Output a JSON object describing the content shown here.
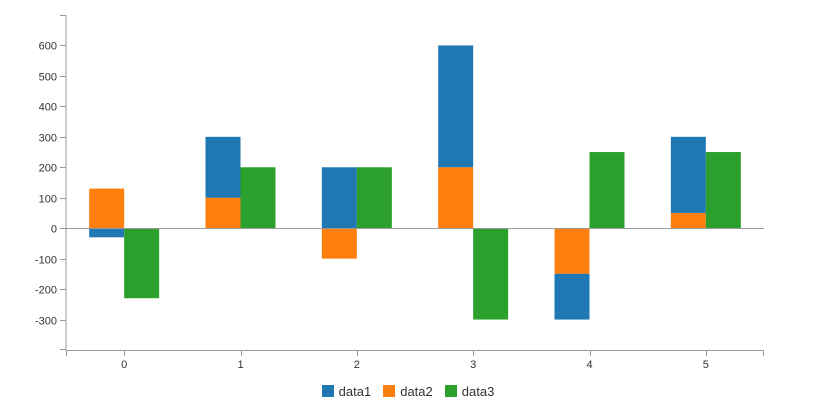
{
  "chart_data": {
    "type": "bar",
    "stacked": "data1+data2",
    "categories": [
      "0",
      "1",
      "2",
      "3",
      "4",
      "5"
    ],
    "series": [
      {
        "name": "data1",
        "color": "#1f77b4",
        "values": [
          -30,
          200,
          200,
          400,
          -150,
          250
        ]
      },
      {
        "name": "data2",
        "color": "#ff7f0e",
        "values": [
          130,
          100,
          -100,
          200,
          -150,
          50
        ]
      },
      {
        "name": "data3",
        "color": "#2ca02c",
        "values": [
          -230,
          200,
          200,
          -300,
          250,
          250
        ]
      }
    ],
    "groups": [
      [
        "data1",
        "data2"
      ]
    ],
    "ylim": [
      -400,
      700
    ],
    "yticks": [
      -300,
      -200,
      -100,
      0,
      100,
      200,
      300,
      400,
      500,
      600
    ],
    "grid": false,
    "legend_position": "bottom"
  }
}
